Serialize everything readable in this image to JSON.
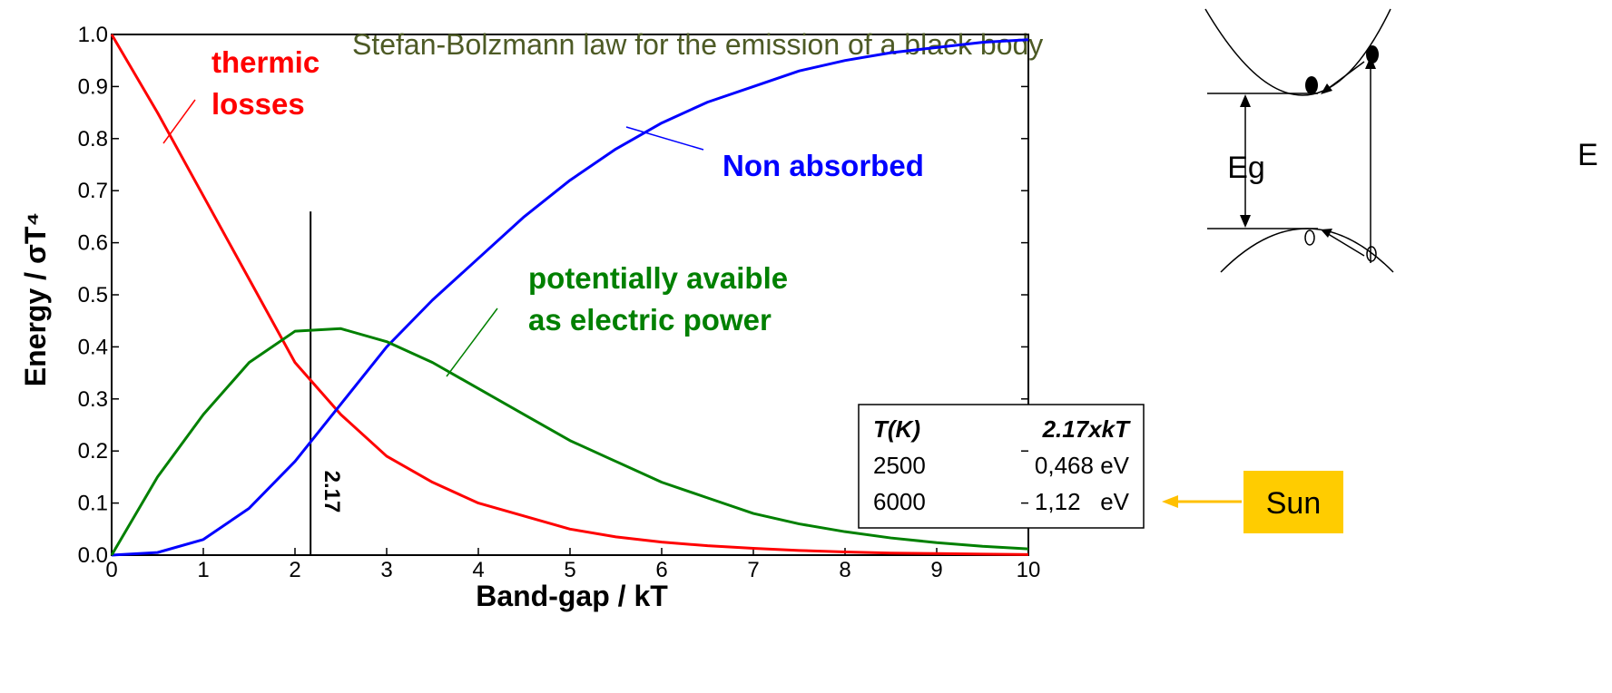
{
  "chart_data": {
    "type": "line",
    "title": "Stefan-Bolzmann law for the emission of a black body",
    "title_color": "#4d5a25",
    "x_label": "Band-gap / kT",
    "y_label": "Energy / σT⁴",
    "x": [
      0,
      0.5,
      1,
      1.5,
      2,
      2.5,
      3,
      3.5,
      4,
      4.5,
      5,
      5.5,
      6,
      6.5,
      7,
      7.5,
      8,
      8.5,
      9,
      9.5,
      10
    ],
    "series": [
      {
        "color": "#ff0000",
        "values": [
          1.0,
          0.85,
          0.69,
          0.53,
          0.37,
          0.27,
          0.19,
          0.14,
          0.1,
          0.075,
          0.05,
          0.035,
          0.025,
          0.018,
          0.013,
          0.009,
          0.006,
          0.004,
          0.003,
          0.002,
          0.001
        ]
      },
      {
        "color": "#0000ff",
        "values": [
          0,
          0.005,
          0.03,
          0.09,
          0.18,
          0.29,
          0.4,
          0.49,
          0.57,
          0.65,
          0.72,
          0.78,
          0.83,
          0.87,
          0.9,
          0.93,
          0.95,
          0.965,
          0.975,
          0.985,
          0.99
        ]
      },
      {
        "color": "#008000",
        "values": [
          0,
          0.15,
          0.27,
          0.37,
          0.43,
          0.435,
          0.41,
          0.37,
          0.32,
          0.27,
          0.22,
          0.18,
          0.14,
          0.11,
          0.08,
          0.06,
          0.045,
          0.033,
          0.024,
          0.017,
          0.012
        ]
      }
    ],
    "xlim": [
      0,
      10
    ],
    "ylim": [
      0,
      1
    ],
    "xticks": [
      0,
      1,
      2,
      3,
      4,
      5,
      6,
      7,
      8,
      9,
      10
    ],
    "yticks": [
      {
        "value": 0,
        "label": "0.0"
      },
      0.1,
      0.2,
      0.3,
      0.4,
      0.5,
      0.6,
      0.7,
      0.8,
      0.9,
      {
        "value": 1,
        "label": "1.0"
      }
    ],
    "optimum": 2.17,
    "annotations": [
      {
        "lines": [
          "thermic",
          "losses"
        ],
        "color": "#ff0000"
      },
      {
        "lines": [
          "Non absorbed"
        ],
        "color": "#0000ff"
      },
      {
        "lines": [
          "potentially avaible",
          "as electric power"
        ],
        "color": "#008000"
      }
    ]
  },
  "table": {
    "header": [
      "T(K)",
      "2.17xkT"
    ],
    "rows": [
      [
        "2500",
        "0,468 eV"
      ],
      [
        "6000",
        "1,12   eV"
      ]
    ]
  },
  "sun": {
    "label": "Sun"
  },
  "diagram": {
    "labels": [
      "Eg",
      "E"
    ]
  }
}
